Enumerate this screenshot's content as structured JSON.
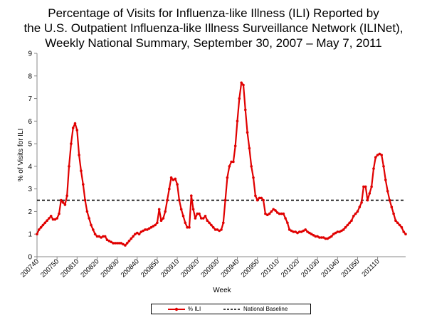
{
  "title": {
    "line1": "Percentage of Visits for Influenza-like Illness (ILI) Reported by",
    "line2": "the U.S. Outpatient Influenza-like Illness Surveillance Network (ILINet),",
    "line3": "Weekly National Summary, September 30, 2007 – May 7, 2011"
  },
  "colors": {
    "ili": "#e00000",
    "baseline": "#000000"
  },
  "chart_data": {
    "type": "line",
    "xlabel": "Week",
    "ylabel": "% of Visits for ILI",
    "ylim": [
      0,
      9
    ],
    "yticks": [
      0,
      1,
      2,
      3,
      4,
      5,
      6,
      7,
      8,
      9
    ],
    "x_tick_labels": [
      "200740",
      "200750",
      "200810",
      "200820",
      "200830",
      "200840",
      "200850",
      "200910",
      "200920",
      "200930",
      "200940",
      "200950",
      "201010",
      "201020",
      "201030",
      "201040",
      "201050",
      "201110"
    ],
    "grid": false,
    "legend_position": "bottom",
    "series": [
      {
        "name": "% ILI",
        "style": "line-with-markers",
        "values": [
          1.0,
          1.2,
          1.3,
          1.4,
          1.5,
          1.6,
          1.7,
          1.8,
          1.65,
          1.65,
          1.7,
          1.9,
          2.5,
          2.4,
          2.3,
          2.7,
          4.0,
          5.0,
          5.7,
          5.9,
          5.6,
          4.5,
          3.8,
          3.2,
          2.5,
          2.0,
          1.7,
          1.4,
          1.2,
          1.0,
          0.9,
          0.9,
          0.85,
          0.9,
          0.9,
          0.75,
          0.7,
          0.65,
          0.6,
          0.6,
          0.6,
          0.6,
          0.6,
          0.55,
          0.5,
          0.6,
          0.7,
          0.8,
          0.9,
          1.0,
          1.05,
          1.0,
          1.1,
          1.15,
          1.2,
          1.2,
          1.25,
          1.3,
          1.35,
          1.4,
          1.5,
          2.1,
          1.6,
          1.7,
          2.0,
          2.5,
          3.0,
          3.5,
          3.4,
          3.45,
          3.2,
          2.5,
          2.1,
          1.8,
          1.5,
          1.3,
          1.3,
          2.7,
          2.1,
          1.7,
          1.9,
          1.9,
          1.7,
          1.7,
          1.8,
          1.6,
          1.5,
          1.4,
          1.3,
          1.2,
          1.2,
          1.15,
          1.2,
          1.5,
          2.5,
          3.5,
          4.0,
          4.2,
          4.2,
          4.9,
          6.0,
          7.0,
          7.7,
          7.6,
          6.5,
          5.5,
          4.8,
          4.0,
          3.5,
          2.7,
          2.5,
          2.6,
          2.6,
          2.5,
          1.9,
          1.85,
          1.9,
          2.0,
          2.1,
          2.05,
          1.95,
          1.9,
          1.9,
          1.9,
          1.7,
          1.5,
          1.2,
          1.15,
          1.1,
          1.1,
          1.05,
          1.1,
          1.1,
          1.15,
          1.2,
          1.1,
          1.05,
          1.0,
          0.95,
          0.9,
          0.9,
          0.85,
          0.85,
          0.85,
          0.8,
          0.8,
          0.85,
          0.9,
          1.0,
          1.05,
          1.1,
          1.1,
          1.15,
          1.2,
          1.3,
          1.4,
          1.5,
          1.6,
          1.8,
          1.9,
          2.0,
          2.2,
          2.4,
          3.1,
          3.1,
          2.5,
          2.8,
          3.1,
          3.9,
          4.4,
          4.5,
          4.55,
          4.5,
          4.0,
          3.4,
          2.9,
          2.5,
          2.2,
          1.9,
          1.6,
          1.5,
          1.4,
          1.3,
          1.1,
          1.0
        ]
      },
      {
        "name": "National Baseline",
        "style": "dashed",
        "values": [
          2.5
        ]
      }
    ]
  }
}
